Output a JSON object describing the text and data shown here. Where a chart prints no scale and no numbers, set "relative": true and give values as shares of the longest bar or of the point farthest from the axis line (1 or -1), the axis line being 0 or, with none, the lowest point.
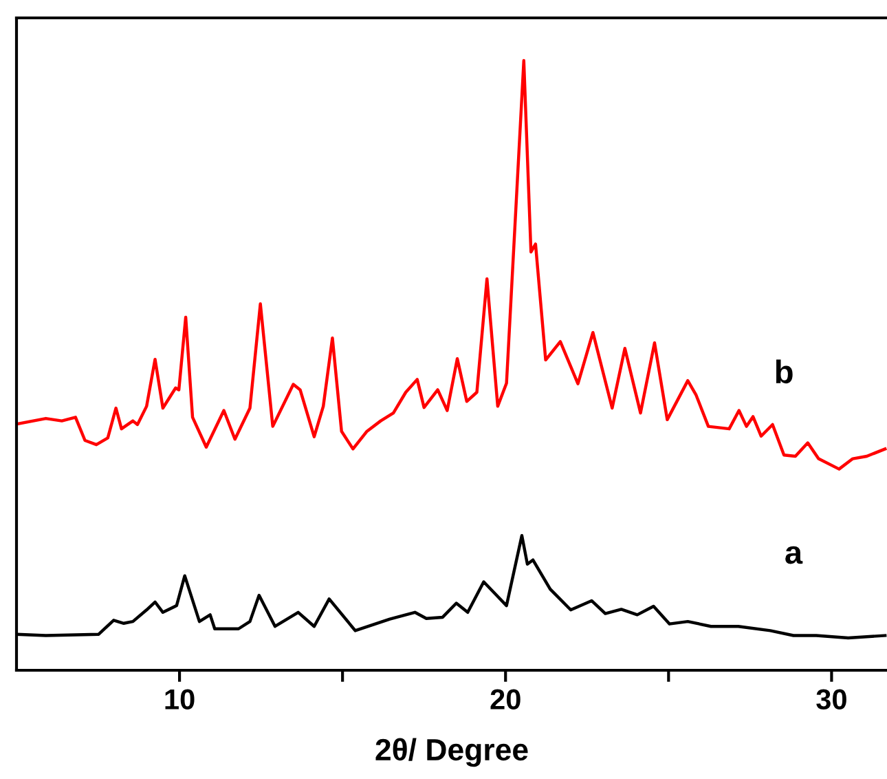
{
  "chart_data": {
    "type": "line",
    "relative": true,
    "xlabel": "2θ/ Degree",
    "xlim": [
      5,
      31.7
    ],
    "xticks": [
      10,
      {
        "value": 15,
        "label": null
      },
      20,
      {
        "value": 25,
        "label": null
      },
      30
    ],
    "grid": false,
    "legend": false,
    "marker": "none",
    "line_style": "solid",
    "series": [
      {
        "name": "b",
        "color": "#ff0000",
        "x": [
          5.01,
          5.9,
          6.39,
          6.81,
          7.1,
          7.45,
          7.8,
          8.05,
          8.22,
          8.57,
          8.71,
          8.99,
          9.25,
          9.49,
          9.88,
          9.98,
          10.19,
          10.4,
          10.82,
          11.36,
          11.7,
          12.16,
          12.48,
          12.86,
          13.49,
          13.7,
          14.13,
          14.41,
          14.69,
          14.97,
          15.32,
          15.75,
          16.17,
          16.56,
          16.94,
          17.29,
          17.5,
          17.92,
          18.21,
          18.52,
          18.81,
          19.12,
          19.43,
          19.76,
          20.03,
          20.56,
          20.78,
          20.92,
          21.23,
          21.68,
          22.22,
          22.68,
          23.27,
          23.66,
          24.14,
          24.57,
          24.96,
          25.59,
          25.84,
          26.22,
          26.86,
          27.16,
          27.39,
          27.59,
          27.84,
          28.19,
          28.54,
          28.89,
          29.27,
          29.6,
          30.23,
          30.65,
          31.08,
          31.64
        ],
        "values": [
          0.404,
          0.413,
          0.409,
          0.415,
          0.377,
          0.37,
          0.381,
          0.43,
          0.396,
          0.409,
          0.403,
          0.433,
          0.51,
          0.43,
          0.463,
          0.46,
          0.579,
          0.415,
          0.366,
          0.426,
          0.379,
          0.43,
          0.601,
          0.4,
          0.469,
          0.46,
          0.383,
          0.433,
          0.545,
          0.392,
          0.363,
          0.392,
          0.409,
          0.422,
          0.456,
          0.477,
          0.431,
          0.46,
          0.426,
          0.511,
          0.441,
          0.456,
          0.642,
          0.433,
          0.471,
          1.0,
          0.686,
          0.699,
          0.509,
          0.539,
          0.47,
          0.554,
          0.43,
          0.528,
          0.422,
          0.537,
          0.411,
          0.475,
          0.452,
          0.4,
          0.396,
          0.426,
          0.4,
          0.416,
          0.384,
          0.403,
          0.353,
          0.351,
          0.373,
          0.347,
          0.33,
          0.347,
          0.351,
          0.363
        ]
      },
      {
        "name": "a",
        "color": "#000000",
        "x": [
          5.01,
          5.9,
          7.52,
          7.98,
          8.29,
          8.57,
          8.99,
          9.25,
          9.49,
          9.91,
          10.16,
          10.61,
          10.94,
          11.08,
          11.81,
          12.16,
          12.44,
          12.93,
          13.64,
          14.13,
          14.59,
          15.39,
          16.45,
          17.22,
          17.57,
          18.07,
          18.49,
          18.84,
          19.33,
          19.76,
          20.03,
          20.5,
          20.67,
          20.84,
          21.37,
          22.0,
          22.64,
          23.06,
          23.55,
          24.04,
          24.54,
          25.03,
          25.59,
          26.3,
          27.14,
          28.12,
          28.83,
          29.53,
          30.51,
          31.64
        ],
        "values": [
          0.059,
          0.057,
          0.059,
          0.082,
          0.077,
          0.08,
          0.099,
          0.112,
          0.095,
          0.106,
          0.155,
          0.08,
          0.091,
          0.068,
          0.068,
          0.08,
          0.123,
          0.072,
          0.095,
          0.072,
          0.117,
          0.065,
          0.084,
          0.095,
          0.085,
          0.087,
          0.11,
          0.095,
          0.145,
          0.121,
          0.106,
          0.221,
          0.174,
          0.181,
          0.133,
          0.099,
          0.114,
          0.093,
          0.1,
          0.091,
          0.105,
          0.076,
          0.08,
          0.072,
          0.072,
          0.065,
          0.057,
          0.057,
          0.053,
          0.057
        ]
      }
    ]
  }
}
